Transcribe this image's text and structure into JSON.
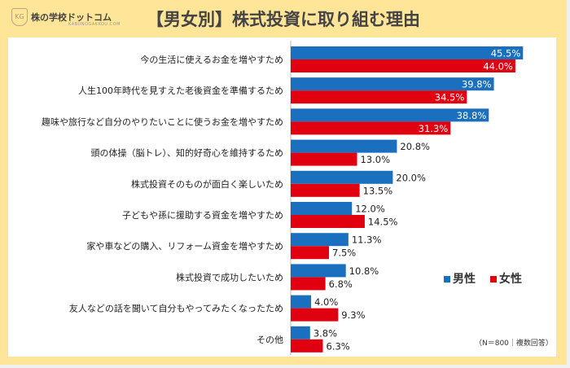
{
  "brand": {
    "name": "株の学校ドットコム",
    "sub": "KABUNOGAKKOU.COM",
    "mark": "KG"
  },
  "chart_data": {
    "type": "bar",
    "orientation": "horizontal",
    "title": "【男女別】株式投資に取り組む理由",
    "categories": [
      "今の生活に使えるお金を増やすため",
      "人生100年時代を見すえた老後資金を準備するため",
      "趣味や旅行など自分のやりたいことに使うお金を増やすため",
      "頭の体操（脳トレ）、知的好奇心を維持するため",
      "株式投資そのものが面白く楽しいため",
      "子どもや孫に援助する資金を増やすため",
      "家や車などの購入、リフォーム資金を増やすため",
      "株式投資で成功したいため",
      "友人などの話を聞いて自分もやってみたくなったため",
      "その他"
    ],
    "series": [
      {
        "name": "男性",
        "color": "#1a6fbf",
        "values": [
          45.5,
          39.8,
          38.8,
          20.8,
          20.0,
          12.0,
          11.3,
          10.8,
          4.0,
          3.8
        ]
      },
      {
        "name": "女性",
        "color": "#e0000f",
        "values": [
          44.0,
          34.5,
          31.3,
          13.0,
          13.5,
          14.5,
          7.5,
          6.8,
          9.3,
          6.3
        ]
      }
    ],
    "unit": "%",
    "legend": "bottom-right",
    "note": "（N＝800｜複数回答）"
  }
}
